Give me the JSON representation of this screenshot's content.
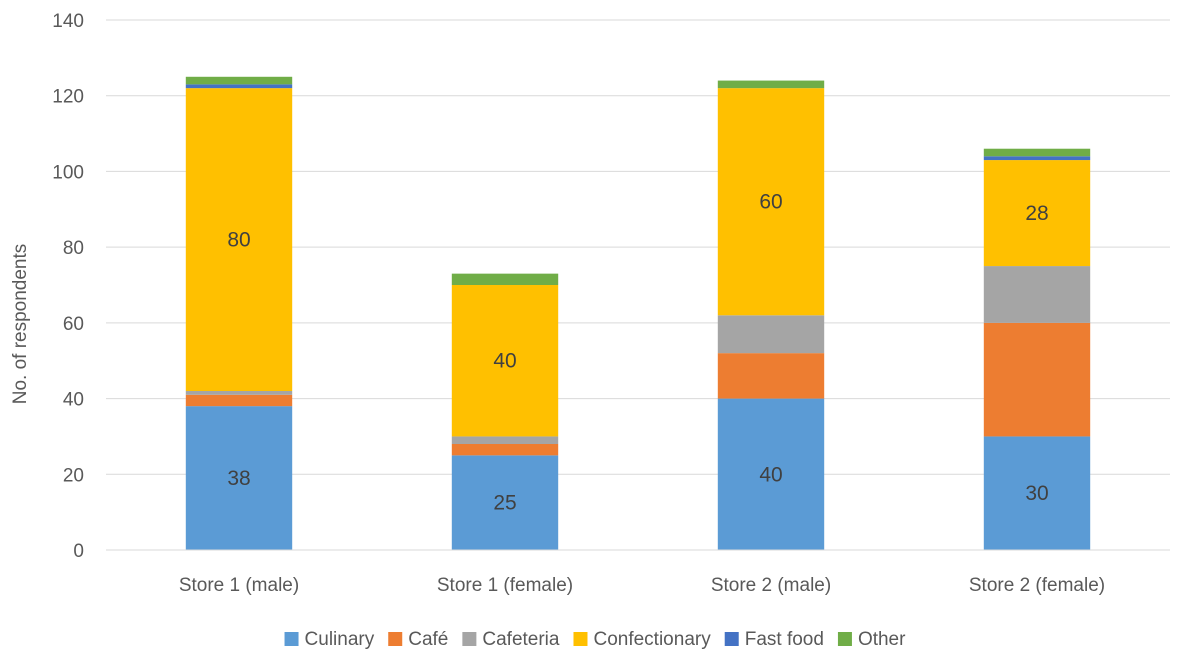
{
  "chart_data": {
    "type": "bar",
    "stacked": true,
    "categories": [
      "Store 1 (male)",
      "Store 1 (female)",
      "Store 2 (male)",
      "Store 2 (female)"
    ],
    "series": [
      {
        "name": "Culinary",
        "color": "#5B9BD5",
        "values": [
          38,
          25,
          40,
          30
        ]
      },
      {
        "name": "Café",
        "color": "#ED7D31",
        "values": [
          3,
          3,
          12,
          30
        ]
      },
      {
        "name": "Cafeteria",
        "color": "#A5A5A5",
        "values": [
          1,
          2,
          10,
          15
        ]
      },
      {
        "name": "Confectionary",
        "color": "#FFC000",
        "values": [
          80,
          40,
          60,
          28
        ]
      },
      {
        "name": "Fast food",
        "color": "#4472C4",
        "values": [
          1,
          0,
          0,
          1
        ]
      },
      {
        "name": "Other",
        "color": "#70AD47",
        "values": [
          2,
          3,
          2,
          2
        ]
      }
    ],
    "data_labels": {
      "Culinary": [
        "38",
        "25",
        "40",
        "30"
      ],
      "Confectionary": [
        "80",
        "40",
        "60",
        "28"
      ]
    },
    "ylabel": "No. of respondents",
    "xlabel": "",
    "ylim": [
      0,
      140
    ],
    "yticks": [
      0,
      20,
      40,
      60,
      80,
      100,
      120,
      140
    ],
    "grid": true,
    "legend_position": "bottom"
  }
}
